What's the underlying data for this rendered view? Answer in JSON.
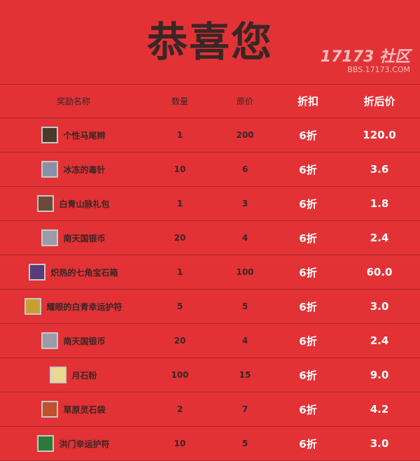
{
  "title": "恭喜您",
  "headers": [
    "奖励名称",
    "数量",
    "原价",
    "折扣",
    "折后价"
  ],
  "rows": [
    {
      "name": "个性马尾辫",
      "qty": "1",
      "price": "200",
      "discount": "6折",
      "final": "120.0",
      "icon": "ponytail-icon",
      "color": "#4a3a2a"
    },
    {
      "name": "冰冻的毒针",
      "qty": "10",
      "price": "6",
      "discount": "6折",
      "final": "3.6",
      "icon": "needle-icon",
      "color": "#8a90a8"
    },
    {
      "name": "白青山脉礼包",
      "qty": "1",
      "price": "3",
      "discount": "6折",
      "final": "1.8",
      "icon": "gift-pack-icon",
      "color": "#6a4a3a"
    },
    {
      "name": "南天国银币",
      "qty": "20",
      "price": "4",
      "discount": "6折",
      "final": "2.4",
      "icon": "silver-coin-icon",
      "color": "#9a9aa8"
    },
    {
      "name": "炽热的七角宝石箱",
      "qty": "1",
      "price": "100",
      "discount": "6折",
      "final": "60.0",
      "icon": "gem-chest-icon",
      "color": "#5a3a7a"
    },
    {
      "name": "耀眼的白青幸运护符",
      "qty": "5",
      "price": "5",
      "discount": "6折",
      "final": "3.0",
      "icon": "amulet-icon",
      "color": "#c8a030"
    },
    {
      "name": "南天国银币",
      "qty": "20",
      "price": "4",
      "discount": "6折",
      "final": "2.4",
      "icon": "silver-coin-icon",
      "color": "#9a9aa8"
    },
    {
      "name": "月石粉",
      "qty": "100",
      "price": "15",
      "discount": "6折",
      "final": "9.0",
      "icon": "moonstone-powder-icon",
      "color": "#e8d890"
    },
    {
      "name": "草原灵石袋",
      "qty": "2",
      "price": "7",
      "discount": "6折",
      "final": "4.2",
      "icon": "stone-bag-icon",
      "color": "#c05030"
    },
    {
      "name": "洪门幸运护符",
      "qty": "10",
      "price": "5",
      "discount": "6折",
      "final": "3.0",
      "icon": "charm-icon",
      "color": "#2a7a3a"
    }
  ],
  "watermark": {
    "logo": "17173 社区",
    "url": "BBS.17173.COM"
  }
}
